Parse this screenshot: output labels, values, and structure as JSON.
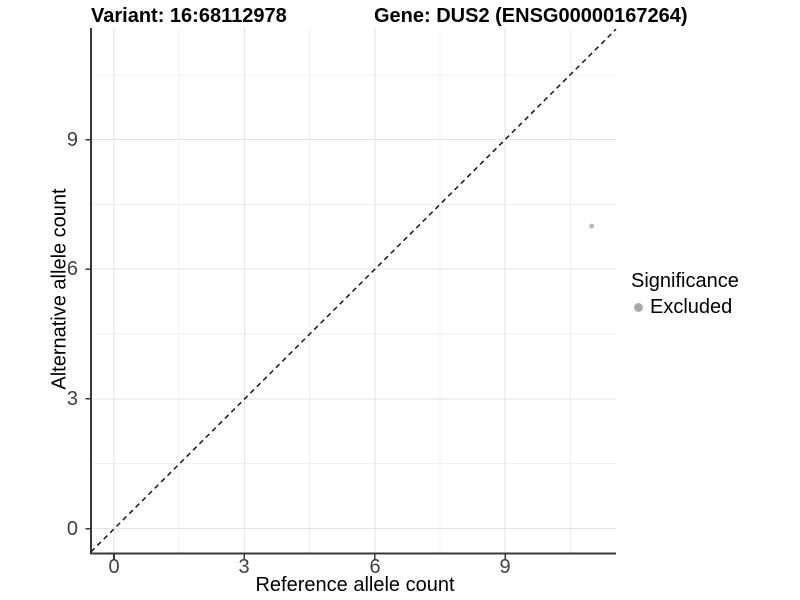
{
  "chart_data": {
    "type": "scatter",
    "titles": {
      "variant": "Variant: 16:68112978",
      "gene": "Gene: DUS2 (ENSG00000167264)"
    },
    "xlabel": "Reference allele count",
    "ylabel": "Alternative allele count",
    "x_tick_labels": [
      "0",
      "3",
      "6",
      "9"
    ],
    "y_tick_labels": [
      "0",
      "3",
      "6",
      "9"
    ],
    "xlim": [
      -0.55,
      11.55
    ],
    "ylim": [
      -0.55,
      11.55
    ],
    "aspect": "equal",
    "grid": {
      "major": true,
      "minor": true
    },
    "identity_line": {
      "slope": 1,
      "intercept": 0,
      "linetype": "dashed",
      "color": "#000000"
    },
    "series": [
      {
        "name": "Excluded",
        "color": "#b9b9b9",
        "points": [
          [
            11,
            7
          ]
        ]
      }
    ],
    "legend": {
      "title": "Significance",
      "position": "right",
      "items": [
        {
          "label": "Excluded",
          "color": "#a9a9a9",
          "marker": "circle"
        }
      ]
    }
  }
}
